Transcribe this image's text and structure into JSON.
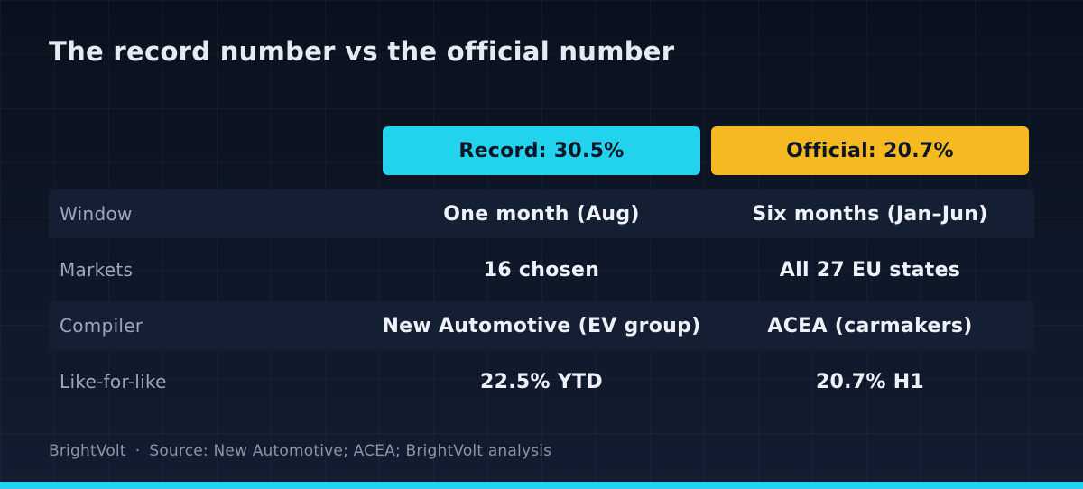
{
  "title": "The record number vs the official number",
  "columns": [
    {
      "label": "Record: 30.5%",
      "color": "#22d3ee"
    },
    {
      "label": "Official: 20.7%",
      "color": "#f5b921"
    }
  ],
  "rows": [
    {
      "label": "Window",
      "record": "One month (Aug)",
      "official": "Six months (Jan–Jun)"
    },
    {
      "label": "Markets",
      "record": "16 chosen",
      "official": "All 27 EU states"
    },
    {
      "label": "Compiler",
      "record": "New Automotive (EV group)",
      "official": "ACEA (carmakers)"
    },
    {
      "label": "Like-for-like",
      "record": "22.5% YTD",
      "official": "20.7% H1"
    }
  ],
  "footer": {
    "brand": "BrightVolt",
    "separator": "·",
    "source": "Source: New Automotive; ACEA; BrightVolt analysis"
  },
  "accent_color": "#22d3ee",
  "chart_data": {
    "type": "table",
    "title": "The record number vs the official number",
    "columns": [
      "Record: 30.5%",
      "Official: 20.7%"
    ],
    "rows": [
      {
        "label": "Window",
        "values": [
          "One month (Aug)",
          "Six months (Jan–Jun)"
        ]
      },
      {
        "label": "Markets",
        "values": [
          "16 chosen",
          "All 27 EU states"
        ]
      },
      {
        "label": "Compiler",
        "values": [
          "New Automotive (EV group)",
          "ACEA (carmakers)"
        ]
      },
      {
        "label": "Like-for-like",
        "values": [
          "22.5% YTD",
          "20.7% H1"
        ]
      }
    ],
    "headline_values": {
      "record": 30.5,
      "official": 20.7
    }
  }
}
